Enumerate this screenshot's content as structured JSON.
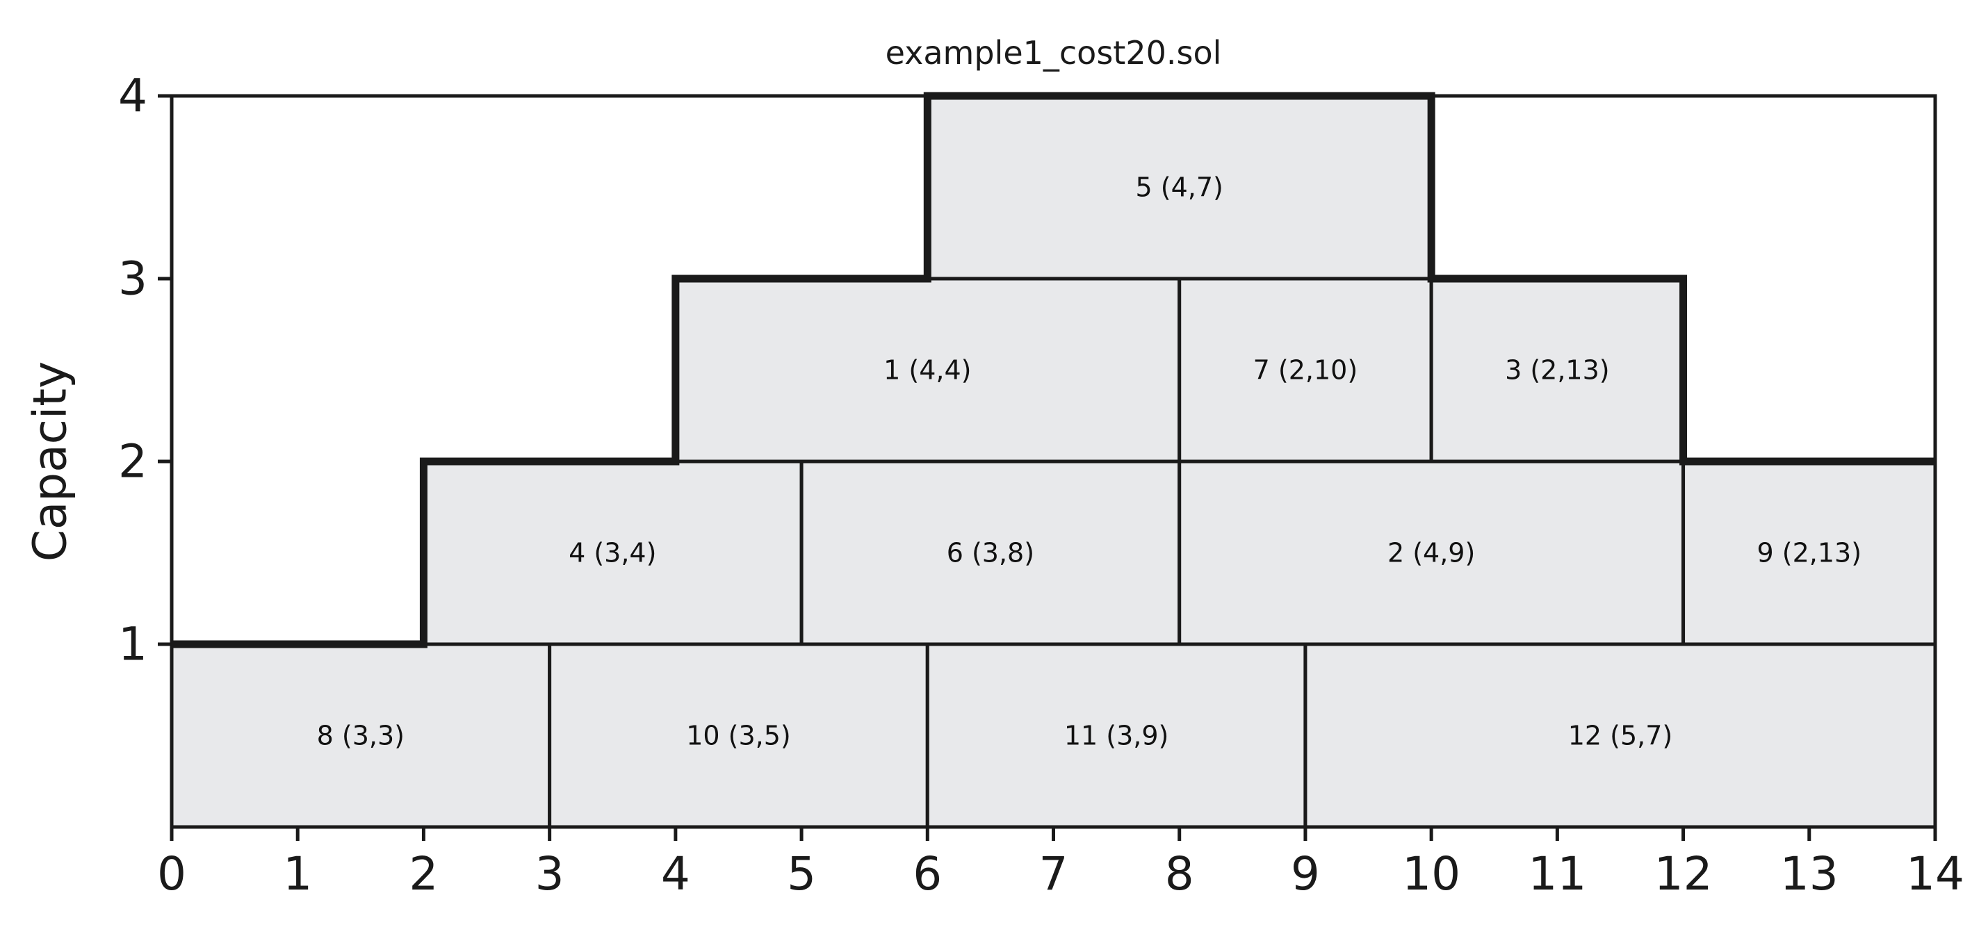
{
  "chart_data": {
    "type": "bar",
    "title": "example1_cost20.sol",
    "xlabel": "",
    "ylabel": "Capacity",
    "xlim": [
      0,
      14
    ],
    "ylim": [
      0,
      4
    ],
    "x_ticks": [
      "0",
      "1",
      "2",
      "3",
      "4",
      "5",
      "6",
      "7",
      "8",
      "9",
      "10",
      "11",
      "12",
      "13",
      "14"
    ],
    "y_ticks": [
      "1",
      "2",
      "3",
      "4"
    ],
    "grid": false,
    "colors": {
      "task_fill": "#e8e9eb",
      "task_edge": "#1a1a1a",
      "profile_line": "#1a1a1a"
    },
    "tasks": [
      {
        "label": "8 (3,3)",
        "start": 0,
        "end": 3,
        "base": 0,
        "height": 1
      },
      {
        "label": "10 (3,5)",
        "start": 3,
        "end": 6,
        "base": 0,
        "height": 1
      },
      {
        "label": "11 (3,9)",
        "start": 6,
        "end": 9,
        "base": 0,
        "height": 1
      },
      {
        "label": "12 (5,7)",
        "start": 9,
        "end": 14,
        "base": 0,
        "height": 1
      },
      {
        "label": "4 (3,4)",
        "start": 2,
        "end": 5,
        "base": 1,
        "height": 1
      },
      {
        "label": "6 (3,8)",
        "start": 5,
        "end": 8,
        "base": 1,
        "height": 1
      },
      {
        "label": "2 (4,9)",
        "start": 8,
        "end": 12,
        "base": 1,
        "height": 1
      },
      {
        "label": "9 (2,13)",
        "start": 12,
        "end": 14,
        "base": 1,
        "height": 1
      },
      {
        "label": "1 (4,4)",
        "start": 4,
        "end": 8,
        "base": 2,
        "height": 1
      },
      {
        "label": "7 (2,10)",
        "start": 8,
        "end": 10,
        "base": 2,
        "height": 1
      },
      {
        "label": "3 (2,13)",
        "start": 10,
        "end": 12,
        "base": 2,
        "height": 1
      },
      {
        "label": "5 (4,7)",
        "start": 6,
        "end": 10,
        "base": 3,
        "height": 1
      }
    ],
    "capacity_profile": [
      [
        0,
        1
      ],
      [
        2,
        1
      ],
      [
        2,
        2
      ],
      [
        4,
        2
      ],
      [
        4,
        3
      ],
      [
        6,
        3
      ],
      [
        6,
        4
      ],
      [
        10,
        4
      ],
      [
        10,
        3
      ],
      [
        12,
        3
      ],
      [
        12,
        2
      ],
      [
        14,
        2
      ]
    ]
  }
}
